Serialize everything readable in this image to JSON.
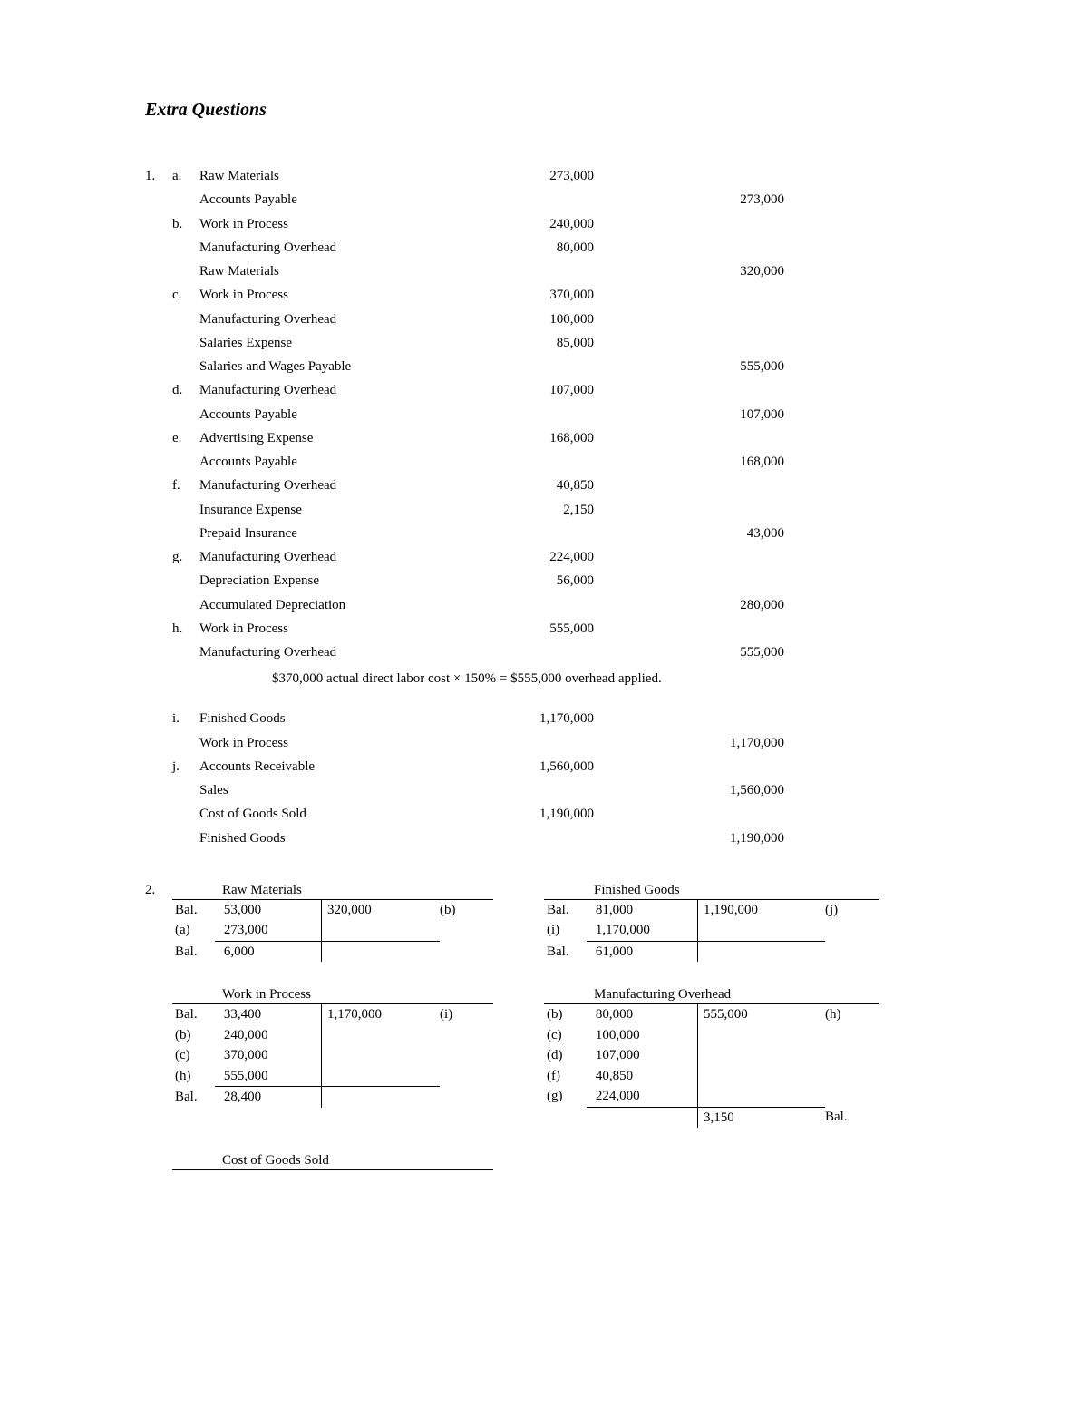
{
  "title": "Extra Questions",
  "question1_number": "1.",
  "entries": [
    {
      "letter": "a.",
      "lines": [
        {
          "account": "Raw Materials",
          "debit": "273,000",
          "credit": ""
        },
        {
          "account": "Accounts Payable",
          "debit": "",
          "credit": "273,000"
        }
      ]
    },
    {
      "letter": "b.",
      "lines": [
        {
          "account": "Work in Process",
          "debit": "240,000",
          "credit": ""
        },
        {
          "account": "Manufacturing Overhead",
          "debit": "80,000",
          "credit": ""
        },
        {
          "account": "Raw Materials",
          "debit": "",
          "credit": "320,000"
        }
      ]
    },
    {
      "letter": "c.",
      "lines": [
        {
          "account": "Work in Process",
          "debit": "370,000",
          "credit": ""
        },
        {
          "account": "Manufacturing Overhead",
          "debit": "100,000",
          "credit": ""
        },
        {
          "account": "Salaries Expense",
          "debit": "85,000",
          "credit": ""
        },
        {
          "account": "Salaries and Wages Payable",
          "debit": "",
          "credit": "555,000"
        }
      ]
    },
    {
      "letter": "d.",
      "lines": [
        {
          "account": "Manufacturing Overhead",
          "debit": "107,000",
          "credit": ""
        },
        {
          "account": "Accounts Payable",
          "debit": "",
          "credit": "107,000"
        }
      ]
    },
    {
      "letter": "e.",
      "lines": [
        {
          "account": "Advertising Expense",
          "debit": "168,000",
          "credit": ""
        },
        {
          "account": "Accounts Payable",
          "debit": "",
          "credit": "168,000"
        }
      ]
    },
    {
      "letter": "f.",
      "lines": [
        {
          "account": "Manufacturing Overhead",
          "debit": "40,850",
          "credit": ""
        },
        {
          "account": "Insurance Expense",
          "debit": "2,150",
          "credit": ""
        },
        {
          "account": "Prepaid Insurance",
          "debit": "",
          "credit": "43,000"
        }
      ]
    },
    {
      "letter": "g.",
      "lines": [
        {
          "account": "Manufacturing Overhead",
          "debit": "224,000",
          "credit": ""
        },
        {
          "account": "Depreciation Expense",
          "debit": "56,000",
          "credit": ""
        },
        {
          "account": "Accumulated Depreciation",
          "debit": "",
          "credit": "280,000"
        }
      ]
    },
    {
      "letter": "h.",
      "lines": [
        {
          "account": "Work in Process",
          "debit": "555,000",
          "credit": ""
        },
        {
          "account": "Manufacturing Overhead",
          "debit": "",
          "credit": "555,000"
        }
      ]
    }
  ],
  "note_h": "$370,000 actual direct labor cost × 150% = $555,000 overhead applied.",
  "entries2": [
    {
      "letter": "i.",
      "lines": [
        {
          "account": "Finished Goods",
          "debit": "1,170,000",
          "credit": ""
        },
        {
          "account": "Work in Process",
          "debit": "",
          "credit": "1,170,000"
        }
      ]
    },
    {
      "letter": "j.",
      "lines": [
        {
          "account": "Accounts Receivable",
          "debit": "1,560,000",
          "credit": ""
        },
        {
          "account": "Sales",
          "debit": "",
          "credit": "1,560,000"
        },
        {
          "account": "Cost of Goods Sold",
          "debit": "1,190,000",
          "credit": ""
        },
        {
          "account": "Finished Goods",
          "debit": "",
          "credit": "1,190,000"
        }
      ]
    }
  ],
  "question2_number": "2.",
  "taccounts": {
    "raw_materials": {
      "title": "Raw Materials",
      "debits": [
        {
          "ref": "Bal.",
          "val": "53,000"
        },
        {
          "ref": "(a)",
          "val": "273,000",
          "underline": true
        }
      ],
      "credits": [
        {
          "val": "320,000",
          "ref": "(b)"
        }
      ],
      "balance": {
        "ref": "Bal.",
        "val": "6,000"
      }
    },
    "finished_goods": {
      "title": "Finished Goods",
      "debits": [
        {
          "ref": "Bal.",
          "val": "81,000"
        },
        {
          "ref": "(i)",
          "val": "1,170,000",
          "underline": true
        }
      ],
      "credits": [
        {
          "val": "1,190,000",
          "ref": "(j)"
        }
      ],
      "balance": {
        "ref": "Bal.",
        "val": "61,000"
      }
    },
    "wip": {
      "title": "Work in Process",
      "debits": [
        {
          "ref": "Bal.",
          "val": "33,400"
        },
        {
          "ref": "(b)",
          "val": "240,000"
        },
        {
          "ref": "(c)",
          "val": "370,000"
        },
        {
          "ref": "(h)",
          "val": "555,000",
          "underline": true
        }
      ],
      "credits": [
        {
          "val": "1,170,000",
          "ref": "(i)"
        }
      ],
      "balance": {
        "ref": "Bal.",
        "val": "28,400"
      }
    },
    "moh": {
      "title": "Manufacturing Overhead",
      "debits": [
        {
          "ref": "(b)",
          "val": "80,000"
        },
        {
          "ref": "(c)",
          "val": "100,000"
        },
        {
          "ref": "(d)",
          "val": "107,000"
        },
        {
          "ref": "(f)",
          "val": "40,850"
        },
        {
          "ref": "(g)",
          "val": "224,000",
          "underline": true
        }
      ],
      "credits": [
        {
          "val": "555,000",
          "ref": "(h)"
        }
      ],
      "credit_balance": {
        "val": "3,150",
        "ref": "Bal."
      }
    },
    "cogs": {
      "title": "Cost of Goods Sold"
    }
  }
}
